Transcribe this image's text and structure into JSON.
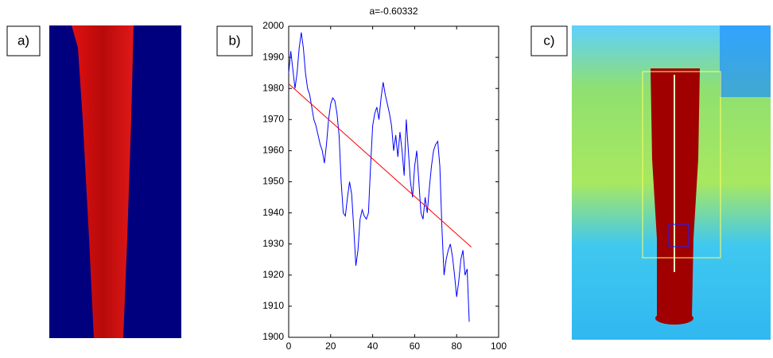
{
  "panels": {
    "a": "a)",
    "b": "b)",
    "c": "c)"
  },
  "chart_data": {
    "type": "line",
    "title": "a=-0.60332",
    "xlim": [
      0,
      100
    ],
    "xticks": [
      0,
      20,
      40,
      60,
      80,
      100
    ],
    "ylim": [
      1900,
      2000
    ],
    "yticks": [
      1900,
      1910,
      1920,
      1930,
      1940,
      1950,
      1960,
      1970,
      1980,
      1990,
      2000
    ],
    "series": [
      {
        "color": "#0000ff",
        "x": [
          0,
          1,
          2,
          3,
          4,
          5,
          6,
          7,
          8,
          9,
          10,
          11,
          12,
          13,
          14,
          15,
          16,
          17,
          18,
          19,
          20,
          21,
          22,
          23,
          24,
          25,
          26,
          27,
          28,
          29,
          30,
          31,
          32,
          33,
          34,
          35,
          36,
          37,
          38,
          39,
          40,
          41,
          42,
          43,
          44,
          45,
          46,
          47,
          48,
          49,
          50,
          51,
          52,
          53,
          54,
          55,
          56,
          57,
          58,
          59,
          60,
          61,
          62,
          63,
          64,
          65,
          66,
          67,
          68,
          69,
          70,
          71,
          72,
          73,
          74,
          75,
          76,
          77,
          78,
          79,
          80,
          81,
          82,
          83,
          84,
          85,
          86
        ],
        "values": [
          1985,
          1992,
          1986,
          1980,
          1985,
          1993,
          1998,
          1993,
          1985,
          1980,
          1978,
          1974,
          1970,
          1968,
          1965,
          1962,
          1960,
          1956,
          1962,
          1970,
          1975,
          1977,
          1976,
          1972,
          1965,
          1950,
          1940,
          1939,
          1945,
          1950,
          1946,
          1935,
          1923,
          1928,
          1938,
          1941,
          1939,
          1938,
          1940,
          1955,
          1968,
          1972,
          1974,
          1970,
          1977,
          1982,
          1978,
          1975,
          1972,
          1968,
          1960,
          1965,
          1958,
          1966,
          1960,
          1952,
          1970,
          1960,
          1950,
          1945,
          1955,
          1960,
          1950,
          1940,
          1938,
          1945,
          1940,
          1948,
          1955,
          1960,
          1962,
          1963,
          1955,
          1935,
          1920,
          1925,
          1928,
          1930,
          1926,
          1920,
          1913,
          1918,
          1925,
          1928,
          1920,
          1922,
          1905
        ]
      },
      {
        "color": "#ff0000",
        "x": [
          0,
          87
        ],
        "values": [
          1981.5,
          1929
        ]
      }
    ]
  }
}
